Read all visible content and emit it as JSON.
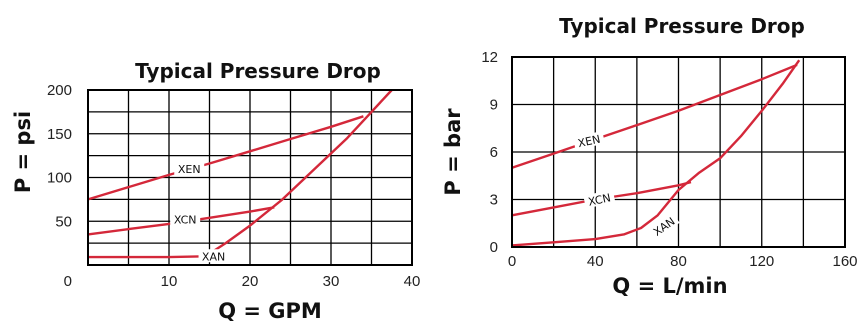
{
  "colors": {
    "curve": "#d4283a",
    "grid": "#000000",
    "background": "#ffffff",
    "label_box": "#ffffff"
  },
  "chart_data": [
    {
      "type": "line",
      "title": "Typical Pressure Drop",
      "xlabel": "Q = GPM",
      "ylabel": "P = psi",
      "xlim": [
        0,
        40
      ],
      "ylim": [
        0,
        200
      ],
      "x_ticks": [
        10,
        20,
        30,
        40
      ],
      "x_tick_labels": [
        "10",
        "20",
        "30",
        "40"
      ],
      "x_origin_label": "0",
      "y_ticks": [
        50,
        100,
        150,
        200
      ],
      "y_tick_labels": [
        "50",
        "100",
        "150",
        "200"
      ],
      "grid": true,
      "series": [
        {
          "name": "XEN",
          "x": [
            0,
            5,
            10,
            15,
            20,
            25,
            30,
            34
          ],
          "y": [
            75,
            89,
            103,
            116,
            130,
            144,
            158,
            170
          ],
          "label_x": 12.5,
          "label_y": 110,
          "label_angle": 0
        },
        {
          "name": "XCN",
          "x": [
            0,
            5,
            10,
            15,
            20,
            23
          ],
          "y": [
            35,
            41,
            47,
            54,
            61,
            66
          ],
          "label_x": 12,
          "label_y": 52,
          "label_angle": 0
        },
        {
          "name": "XAN",
          "x": [
            0,
            10,
            14.5,
            17,
            20,
            24,
            28,
            32,
            35,
            37.5
          ],
          "y": [
            9,
            9,
            10,
            25,
            45,
            75,
            110,
            145,
            175,
            200
          ],
          "label_x": 15.5,
          "label_y": 10,
          "label_angle": 0
        }
      ]
    },
    {
      "type": "line",
      "title": "Typical Pressure Drop",
      "xlabel": "Q = L/min",
      "ylabel": "P = bar",
      "xlim": [
        0,
        160
      ],
      "ylim": [
        0,
        12
      ],
      "x_ticks": [
        0,
        40,
        80,
        120,
        160
      ],
      "x_tick_labels": [
        "0",
        "40",
        "80",
        "120",
        "160"
      ],
      "y_ticks": [
        0,
        3,
        6,
        9,
        12
      ],
      "y_tick_labels": [
        "0",
        "3",
        "6",
        "9",
        "12"
      ],
      "grid": true,
      "series": [
        {
          "name": "XEN",
          "x": [
            0,
            20,
            40,
            60,
            80,
            100,
            120,
            137
          ],
          "y": [
            5,
            5.9,
            6.8,
            7.7,
            8.6,
            9.6,
            10.6,
            11.5
          ],
          "label_x": 37,
          "label_y": 6.7,
          "label_angle": -12
        },
        {
          "name": "XCN",
          "x": [
            0,
            20,
            40,
            60,
            80,
            86
          ],
          "y": [
            2,
            2.5,
            3,
            3.4,
            3.9,
            4.1
          ],
          "label_x": 42,
          "label_y": 3.0,
          "label_angle": -12
        },
        {
          "name": "XAN",
          "x": [
            0,
            20,
            40,
            54,
            62,
            70,
            80,
            90,
            100,
            110,
            120,
            130,
            138
          ],
          "y": [
            0.1,
            0.3,
            0.5,
            0.8,
            1.2,
            2,
            3.6,
            4.7,
            5.6,
            7,
            8.6,
            10.3,
            11.8
          ],
          "label_x": 73,
          "label_y": 1.3,
          "label_angle": -35
        }
      ]
    }
  ]
}
